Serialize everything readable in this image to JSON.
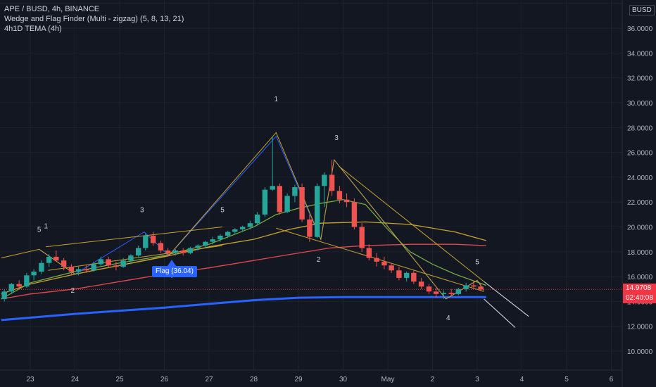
{
  "legend": {
    "symbol_line": "APE / BUSD, 4h, BINANCE",
    "indicator_1": "Wedge and Flag Finder (Multi - zigzag) (5, 8, 13, 21)",
    "indicator_2": "4h1D TEMA (4h)"
  },
  "price_scale": {
    "currency": "BUSD",
    "ticks": [
      {
        "value": 38,
        "label": "38.0000"
      },
      {
        "value": 36,
        "label": "36.0000"
      },
      {
        "value": 34,
        "label": "34.0000"
      },
      {
        "value": 32,
        "label": "32.0000"
      },
      {
        "value": 30,
        "label": "30.0000"
      },
      {
        "value": 28,
        "label": "28.0000"
      },
      {
        "value": 26,
        "label": "26.0000"
      },
      {
        "value": 24,
        "label": "24.0000"
      },
      {
        "value": 22,
        "label": "22.0000"
      },
      {
        "value": 20,
        "label": "20.0000"
      },
      {
        "value": 18,
        "label": "18.0000"
      },
      {
        "value": 16,
        "label": "16.0000"
      },
      {
        "value": 14,
        "label": "14.0000"
      },
      {
        "value": 12,
        "label": "12.0000"
      },
      {
        "value": 10,
        "label": "10.0000"
      }
    ],
    "last_price": "14.9708",
    "countdown": "02:40:08"
  },
  "time_axis": [
    {
      "day": 23,
      "label": "23"
    },
    {
      "day": 24,
      "label": "24"
    },
    {
      "day": 25,
      "label": "25"
    },
    {
      "day": 26,
      "label": "26"
    },
    {
      "day": 27,
      "label": "27"
    },
    {
      "day": 28,
      "label": "28"
    },
    {
      "day": 29,
      "label": "29"
    },
    {
      "day": 30,
      "label": "30"
    },
    {
      "day": 31,
      "label": "May"
    },
    {
      "day": 32,
      "label": "2"
    },
    {
      "day": 33,
      "label": "3"
    },
    {
      "day": 34,
      "label": "4"
    },
    {
      "day": 35,
      "label": "5"
    },
    {
      "day": 36,
      "label": "6"
    }
  ],
  "flag_label": "Flag (36.04)",
  "chart_data": {
    "type": "candlestick",
    "x_unit": "day",
    "ylim": [
      9,
      38.5
    ],
    "xlim": [
      22.35,
      37.15
    ],
    "colors": {
      "up": "#26a69a",
      "down": "#ef5350",
      "background": "#131722"
    },
    "candles": [
      [
        22.42,
        14.2,
        15.0,
        14.0,
        14.8
      ],
      [
        22.58,
        14.8,
        15.5,
        14.6,
        15.4
      ],
      [
        22.75,
        15.4,
        15.7,
        15.0,
        15.2
      ],
      [
        22.92,
        15.2,
        16.3,
        15.1,
        16.1
      ],
      [
        23.08,
        16.1,
        16.6,
        15.7,
        16.4
      ],
      [
        23.25,
        16.4,
        17.3,
        16.2,
        17.1
      ],
      [
        23.42,
        17.1,
        17.8,
        16.8,
        17.6
      ],
      [
        23.58,
        17.6,
        18.1,
        17.2,
        17.3
      ],
      [
        23.75,
        17.3,
        17.5,
        16.5,
        16.8
      ],
      [
        23.92,
        16.8,
        17.0,
        16.2,
        16.4
      ],
      [
        24.08,
        16.4,
        16.8,
        16.1,
        16.6
      ],
      [
        24.25,
        16.6,
        16.9,
        16.3,
        16.5
      ],
      [
        24.42,
        16.5,
        17.2,
        16.4,
        17.0
      ],
      [
        24.58,
        17.0,
        17.6,
        16.8,
        17.4
      ],
      [
        24.75,
        17.4,
        17.6,
        16.7,
        16.9
      ],
      [
        24.92,
        16.9,
        17.2,
        16.5,
        16.8
      ],
      [
        25.08,
        16.8,
        17.5,
        16.7,
        17.3
      ],
      [
        25.25,
        17.3,
        17.8,
        17.0,
        17.7
      ],
      [
        25.42,
        17.7,
        18.5,
        17.6,
        18.3
      ],
      [
        25.58,
        18.3,
        19.5,
        18.1,
        19.3
      ],
      [
        25.75,
        19.3,
        19.6,
        18.5,
        18.7
      ],
      [
        25.92,
        18.7,
        18.9,
        17.9,
        18.1
      ],
      [
        26.08,
        18.1,
        18.3,
        17.6,
        17.9
      ],
      [
        26.25,
        17.9,
        18.2,
        17.7,
        18.1
      ],
      [
        26.42,
        18.1,
        18.3,
        17.7,
        17.9
      ],
      [
        26.58,
        17.9,
        18.4,
        17.8,
        18.3
      ],
      [
        26.75,
        18.3,
        18.6,
        18.1,
        18.5
      ],
      [
        26.92,
        18.5,
        18.9,
        18.3,
        18.8
      ],
      [
        27.08,
        18.8,
        19.2,
        18.6,
        19.0
      ],
      [
        27.25,
        19.0,
        19.4,
        18.8,
        19.3
      ],
      [
        27.42,
        19.3,
        19.7,
        19.1,
        19.6
      ],
      [
        27.58,
        19.6,
        19.9,
        19.4,
        19.8
      ],
      [
        27.75,
        19.8,
        20.1,
        19.6,
        20.0
      ],
      [
        27.92,
        20.0,
        20.5,
        19.8,
        20.3
      ],
      [
        28.08,
        20.3,
        21.2,
        20.1,
        21.0
      ],
      [
        28.25,
        21.0,
        23.2,
        20.8,
        23.0
      ],
      [
        28.42,
        23.0,
        27.3,
        22.9,
        23.3
      ],
      [
        28.58,
        23.3,
        23.5,
        21.0,
        21.2
      ],
      [
        28.75,
        21.2,
        22.7,
        21.1,
        22.5
      ],
      [
        28.92,
        22.5,
        23.4,
        22.0,
        23.2
      ],
      [
        29.08,
        23.2,
        23.5,
        20.4,
        20.6
      ],
      [
        29.25,
        20.6,
        21.0,
        18.8,
        19.2
      ],
      [
        29.42,
        19.2,
        23.5,
        19.1,
        23.3
      ],
      [
        29.58,
        23.3,
        24.4,
        21.6,
        24.2
      ],
      [
        29.75,
        24.2,
        25.4,
        22.5,
        22.9
      ],
      [
        29.92,
        22.9,
        23.3,
        21.9,
        22.2
      ],
      [
        30.08,
        22.2,
        22.7,
        21.6,
        22.0
      ],
      [
        30.25,
        22.0,
        22.3,
        19.8,
        20.0
      ],
      [
        30.42,
        20.0,
        20.3,
        18.0,
        18.3
      ],
      [
        30.58,
        18.3,
        18.6,
        17.3,
        17.5
      ],
      [
        30.75,
        17.5,
        17.9,
        16.8,
        17.2
      ],
      [
        30.92,
        17.2,
        17.6,
        16.6,
        16.9
      ],
      [
        31.08,
        16.9,
        17.1,
        16.3,
        16.5
      ],
      [
        31.25,
        16.5,
        16.8,
        15.7,
        15.9
      ],
      [
        31.42,
        15.9,
        16.4,
        15.6,
        16.3
      ],
      [
        31.58,
        16.3,
        16.5,
        15.4,
        15.6
      ],
      [
        31.75,
        15.6,
        15.9,
        15.0,
        15.2
      ],
      [
        31.92,
        15.2,
        15.4,
        14.6,
        14.8
      ],
      [
        32.08,
        14.8,
        15.1,
        14.3,
        14.6
      ],
      [
        32.25,
        14.6,
        14.9,
        14.2,
        14.7
      ],
      [
        32.42,
        14.7,
        15.0,
        14.4,
        14.6
      ],
      [
        32.58,
        14.6,
        15.1,
        14.5,
        15.0
      ],
      [
        32.75,
        15.0,
        15.5,
        14.8,
        15.3
      ],
      [
        32.92,
        15.3,
        15.7,
        15.1,
        15.2
      ],
      [
        33.08,
        15.2,
        15.4,
        14.9,
        14.97
      ]
    ],
    "series": [
      {
        "color": "#2962ff",
        "width": 3,
        "points": [
          [
            22.35,
            12.5
          ],
          [
            24,
            13.0
          ],
          [
            26,
            13.5
          ],
          [
            27,
            13.8
          ],
          [
            28,
            14.1
          ],
          [
            29,
            14.3
          ],
          [
            30,
            14.35
          ],
          [
            31,
            14.35
          ],
          [
            32,
            14.35
          ],
          [
            33.2,
            14.35
          ]
        ]
      },
      {
        "color": "#e5484d",
        "width": 1.3,
        "points": [
          [
            22.35,
            14.2
          ],
          [
            23,
            14.6
          ],
          [
            24,
            15.0
          ],
          [
            25,
            15.6
          ],
          [
            26,
            16.2
          ],
          [
            27,
            16.7
          ],
          [
            28,
            17.3
          ],
          [
            29,
            17.9
          ],
          [
            29.7,
            18.3
          ],
          [
            30.5,
            18.5
          ],
          [
            31.5,
            18.6
          ],
          [
            32.5,
            18.6
          ],
          [
            33.2,
            18.5
          ]
        ]
      },
      {
        "color": "#c8a330",
        "width": 1.3,
        "points": [
          [
            22.35,
            14.6
          ],
          [
            23,
            15.4
          ],
          [
            24,
            16.2
          ],
          [
            25,
            16.9
          ],
          [
            26,
            17.6
          ],
          [
            27,
            18.4
          ],
          [
            28,
            19.0
          ],
          [
            28.8,
            19.8
          ],
          [
            29.5,
            20.3
          ],
          [
            30.5,
            20.4
          ],
          [
            31.5,
            20.2
          ],
          [
            32.5,
            19.6
          ],
          [
            33.2,
            18.9
          ]
        ]
      },
      {
        "color": "#7cb342",
        "width": 1.2,
        "points": [
          [
            22.35,
            14.2
          ],
          [
            23,
            15.5
          ],
          [
            24,
            16.4
          ],
          [
            25,
            17.1
          ],
          [
            26,
            17.7
          ],
          [
            27,
            18.6
          ],
          [
            28,
            20.0
          ],
          [
            28.5,
            21.0
          ],
          [
            29,
            21.5
          ],
          [
            29.5,
            21.9
          ],
          [
            30,
            22.2
          ],
          [
            30.5,
            21.8
          ],
          [
            31,
            19.8
          ],
          [
            31.5,
            18.0
          ],
          [
            32,
            17.0
          ],
          [
            32.5,
            16.2
          ],
          [
            33.2,
            15.3
          ]
        ]
      }
    ],
    "zigzags": [
      {
        "color": "#2962ff",
        "points": [
          [
            23.2,
            18.2
          ],
          [
            24,
            16.2
          ],
          [
            25.55,
            19.6
          ],
          [
            26.1,
            17.7
          ],
          [
            28.5,
            27.3
          ],
          [
            29.5,
            19.0
          ],
          [
            29.8,
            25.4
          ],
          [
            32.3,
            14.2
          ],
          [
            33.0,
            15.7
          ],
          [
            33.15,
            14.9
          ]
        ]
      },
      {
        "color": "#c8a330",
        "points": [
          [
            22.35,
            17.5
          ],
          [
            23.2,
            18.2
          ],
          [
            24,
            16.2
          ],
          [
            26.1,
            17.7
          ],
          [
            28.5,
            27.6
          ],
          [
            29.5,
            19.0
          ],
          [
            29.8,
            25.4
          ],
          [
            32.3,
            14.2
          ],
          [
            33.0,
            15.7
          ],
          [
            33.15,
            14.9
          ]
        ]
      }
    ],
    "wedge_lines": [
      {
        "color": "#c8a330",
        "from": [
          23.35,
          18.4
        ],
        "to": [
          27.3,
          20.0
        ]
      },
      {
        "color": "#c8a330",
        "from": [
          23.4,
          16.5
        ],
        "to": [
          27.3,
          18.5
        ]
      },
      {
        "color": "#c8a330",
        "from": [
          28.5,
          19.9
        ],
        "to": [
          33.15,
          14.8
        ]
      },
      {
        "color": "#c8a330",
        "from": [
          29.9,
          24.9
        ],
        "to": [
          33.15,
          15.6
        ]
      },
      {
        "color": "#e0e3eb",
        "from": [
          33.15,
          15.6
        ],
        "to": [
          34.15,
          12.8
        ]
      },
      {
        "color": "#e0e3eb",
        "from": [
          33.15,
          14.2
        ],
        "to": [
          33.85,
          11.9
        ]
      }
    ],
    "pivot_labels": [
      {
        "text": "5",
        "x": 23.2,
        "y": 19.6
      },
      {
        "text": "1",
        "x": 23.35,
        "y": 19.9
      },
      {
        "text": "2",
        "x": 23.95,
        "y": 14.7
      },
      {
        "text": "3",
        "x": 25.5,
        "y": 21.2
      },
      {
        "text": "4",
        "x": 26.15,
        "y": 15.9
      },
      {
        "text": "5",
        "x": 27.3,
        "y": 21.2
      },
      {
        "text": "1",
        "x": 28.5,
        "y": 30.1
      },
      {
        "text": "2",
        "x": 29.45,
        "y": 17.2
      },
      {
        "text": "3",
        "x": 29.85,
        "y": 27.0
      },
      {
        "text": "4",
        "x": 32.35,
        "y": 12.5
      },
      {
        "text": "5",
        "x": 33.0,
        "y": 17.0
      }
    ],
    "last_price": 14.97
  }
}
